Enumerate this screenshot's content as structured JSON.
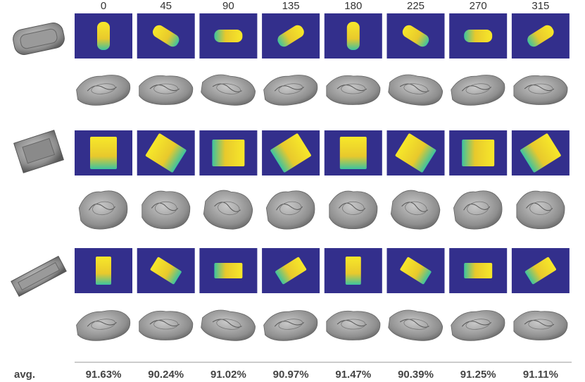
{
  "column_headers": [
    "0",
    "45",
    "90",
    "135",
    "180",
    "225",
    "270",
    "315"
  ],
  "avg": {
    "label": "avg.",
    "values": [
      "91.63%",
      "90.24%",
      "91.02%",
      "90.97%",
      "91.47%",
      "90.39%",
      "91.25%",
      "91.11%"
    ]
  }
}
